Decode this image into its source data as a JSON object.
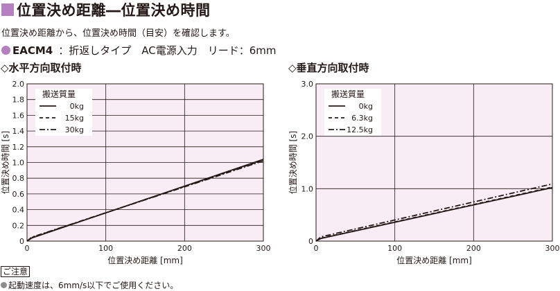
{
  "header": {
    "title": "位置決め距離―位置決め時間",
    "subtitle": "位置決め距離から、位置決め時間（目安）を確認します。",
    "model_name": "EACM4",
    "model_spec": "：折返しタイプ　AC電源入力　リード：6mm"
  },
  "colors": {
    "accent": "#b57fc0",
    "dot": "#b57fc0",
    "plot_bg": "#f9edf5",
    "grid": "#231815",
    "line": "#231815",
    "note_dot": "#8d8d8d"
  },
  "sections": {
    "left": "◇水平方向取付時",
    "right": "◇垂直方向取付時"
  },
  "note": {
    "badge": "ご注意",
    "text": "起動速度は、6mm/s以下でご使用ください。"
  },
  "chart_data": [
    {
      "type": "line",
      "title": "",
      "xlabel": "位置決め距離 [mm]",
      "ylabel": "位置決め時間 [s]",
      "xlim": [
        0,
        300
      ],
      "ylim": [
        0,
        2.0
      ],
      "xticks": [
        "0",
        "100",
        "200",
        "300"
      ],
      "yticks": [
        "0",
        "0.2",
        "0.4",
        "0.6",
        "0.8",
        "1.0",
        "1.2",
        "1.4",
        "1.6",
        "1.8",
        "2.0"
      ],
      "grid": true,
      "legend_title": "搬送質量",
      "legend_position": "top-left",
      "series": [
        {
          "name": "0kg",
          "style": "solid",
          "x": [
            0,
            6,
            300
          ],
          "y": [
            0,
            0.04,
            1.04
          ]
        },
        {
          "name": "15kg",
          "style": "dashed",
          "x": [
            0,
            6,
            300
          ],
          "y": [
            0,
            0.045,
            1.03
          ]
        },
        {
          "name": "30kg",
          "style": "dashdot",
          "x": [
            0,
            6,
            300
          ],
          "y": [
            0,
            0.05,
            1.02
          ]
        }
      ]
    },
    {
      "type": "line",
      "title": "",
      "xlabel": "位置決め距離 [mm]",
      "ylabel": "位置決め時間 [s]",
      "xlim": [
        0,
        300
      ],
      "ylim": [
        0,
        3.0
      ],
      "xticks": [
        "0",
        "100",
        "200",
        "300"
      ],
      "yticks": [
        "0",
        "1.0",
        "2.0",
        "3.0"
      ],
      "grid": true,
      "legend_title": "搬送質量",
      "legend_position": "top-left",
      "series": [
        {
          "name": "0kg",
          "style": "solid",
          "x": [
            0,
            6,
            300
          ],
          "y": [
            0,
            0.05,
            1.02
          ]
        },
        {
          "name": "6.3kg",
          "style": "dashed",
          "x": [
            0,
            6,
            300
          ],
          "y": [
            0,
            0.055,
            1.03
          ]
        },
        {
          "name": "12.5kg",
          "style": "dashdot",
          "x": [
            0,
            6,
            300
          ],
          "y": [
            0,
            0.08,
            1.09
          ]
        }
      ]
    }
  ]
}
